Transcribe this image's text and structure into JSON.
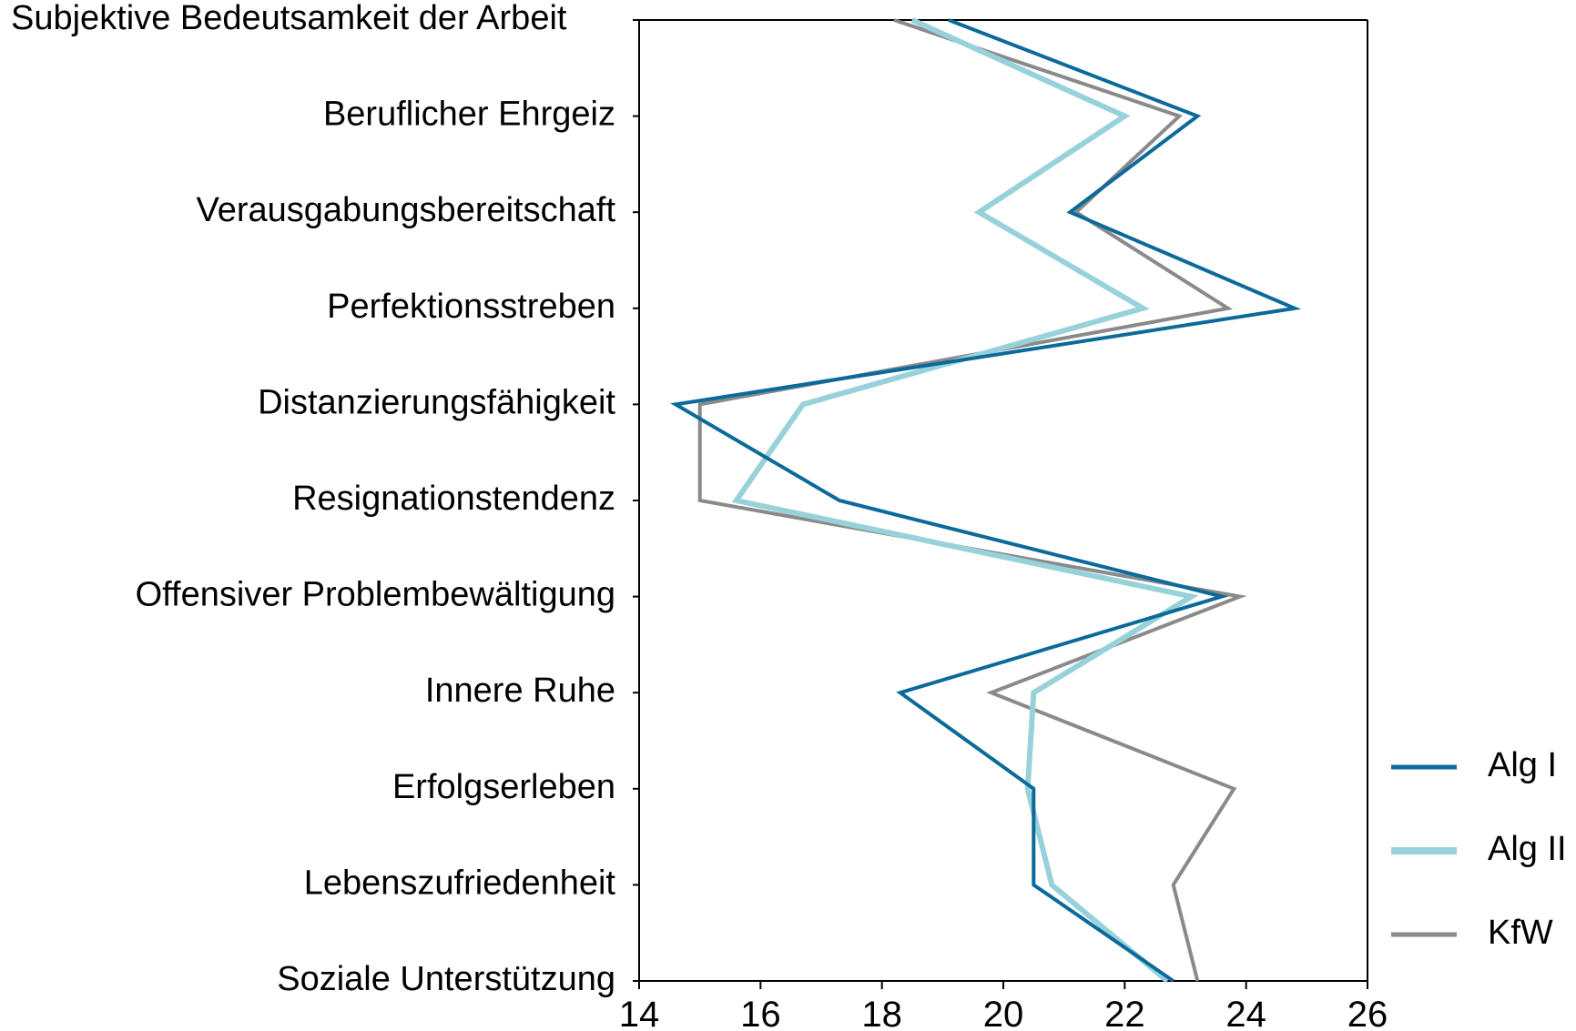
{
  "chart_data": {
    "type": "line",
    "orientation": "horizontal",
    "categories": [
      "Subjektive Bedeutsamkeit der Arbeit",
      "Beruflicher Ehrgeiz",
      "Verausgabungsbereitschaft",
      "Perfektionsstreben",
      "Distanzierungsfähigkeit",
      "Resignationstendenz",
      "Offensiver Problembewältigung",
      "Innere Ruhe",
      "Erfolgserleben",
      "Lebenszufriedenheit",
      "Soziale Unterstützung"
    ],
    "series": [
      {
        "name": "Alg I",
        "color": "#0b6a9a",
        "values": [
          19.1,
          23.2,
          21.1,
          24.8,
          14.6,
          17.3,
          23.6,
          18.3,
          20.5,
          20.5,
          22.8
        ]
      },
      {
        "name": "Alg II",
        "color": "#97d2da",
        "values": [
          18.5,
          22.0,
          19.6,
          22.3,
          16.7,
          15.6,
          23.1,
          20.5,
          20.4,
          20.8,
          22.7
        ]
      },
      {
        "name": "KfW",
        "color": "#8a8a8a",
        "values": [
          18.2,
          22.9,
          21.2,
          23.7,
          15.0,
          15.0,
          23.9,
          19.8,
          23.8,
          22.8,
          23.2
        ]
      }
    ],
    "xlim": [
      14,
      26
    ],
    "xticks": [
      "14",
      "16",
      "18",
      "20",
      "22",
      "24",
      "26"
    ],
    "xlabel": "",
    "ylabel": "",
    "title": "",
    "grid": false,
    "legend_position": "right"
  }
}
